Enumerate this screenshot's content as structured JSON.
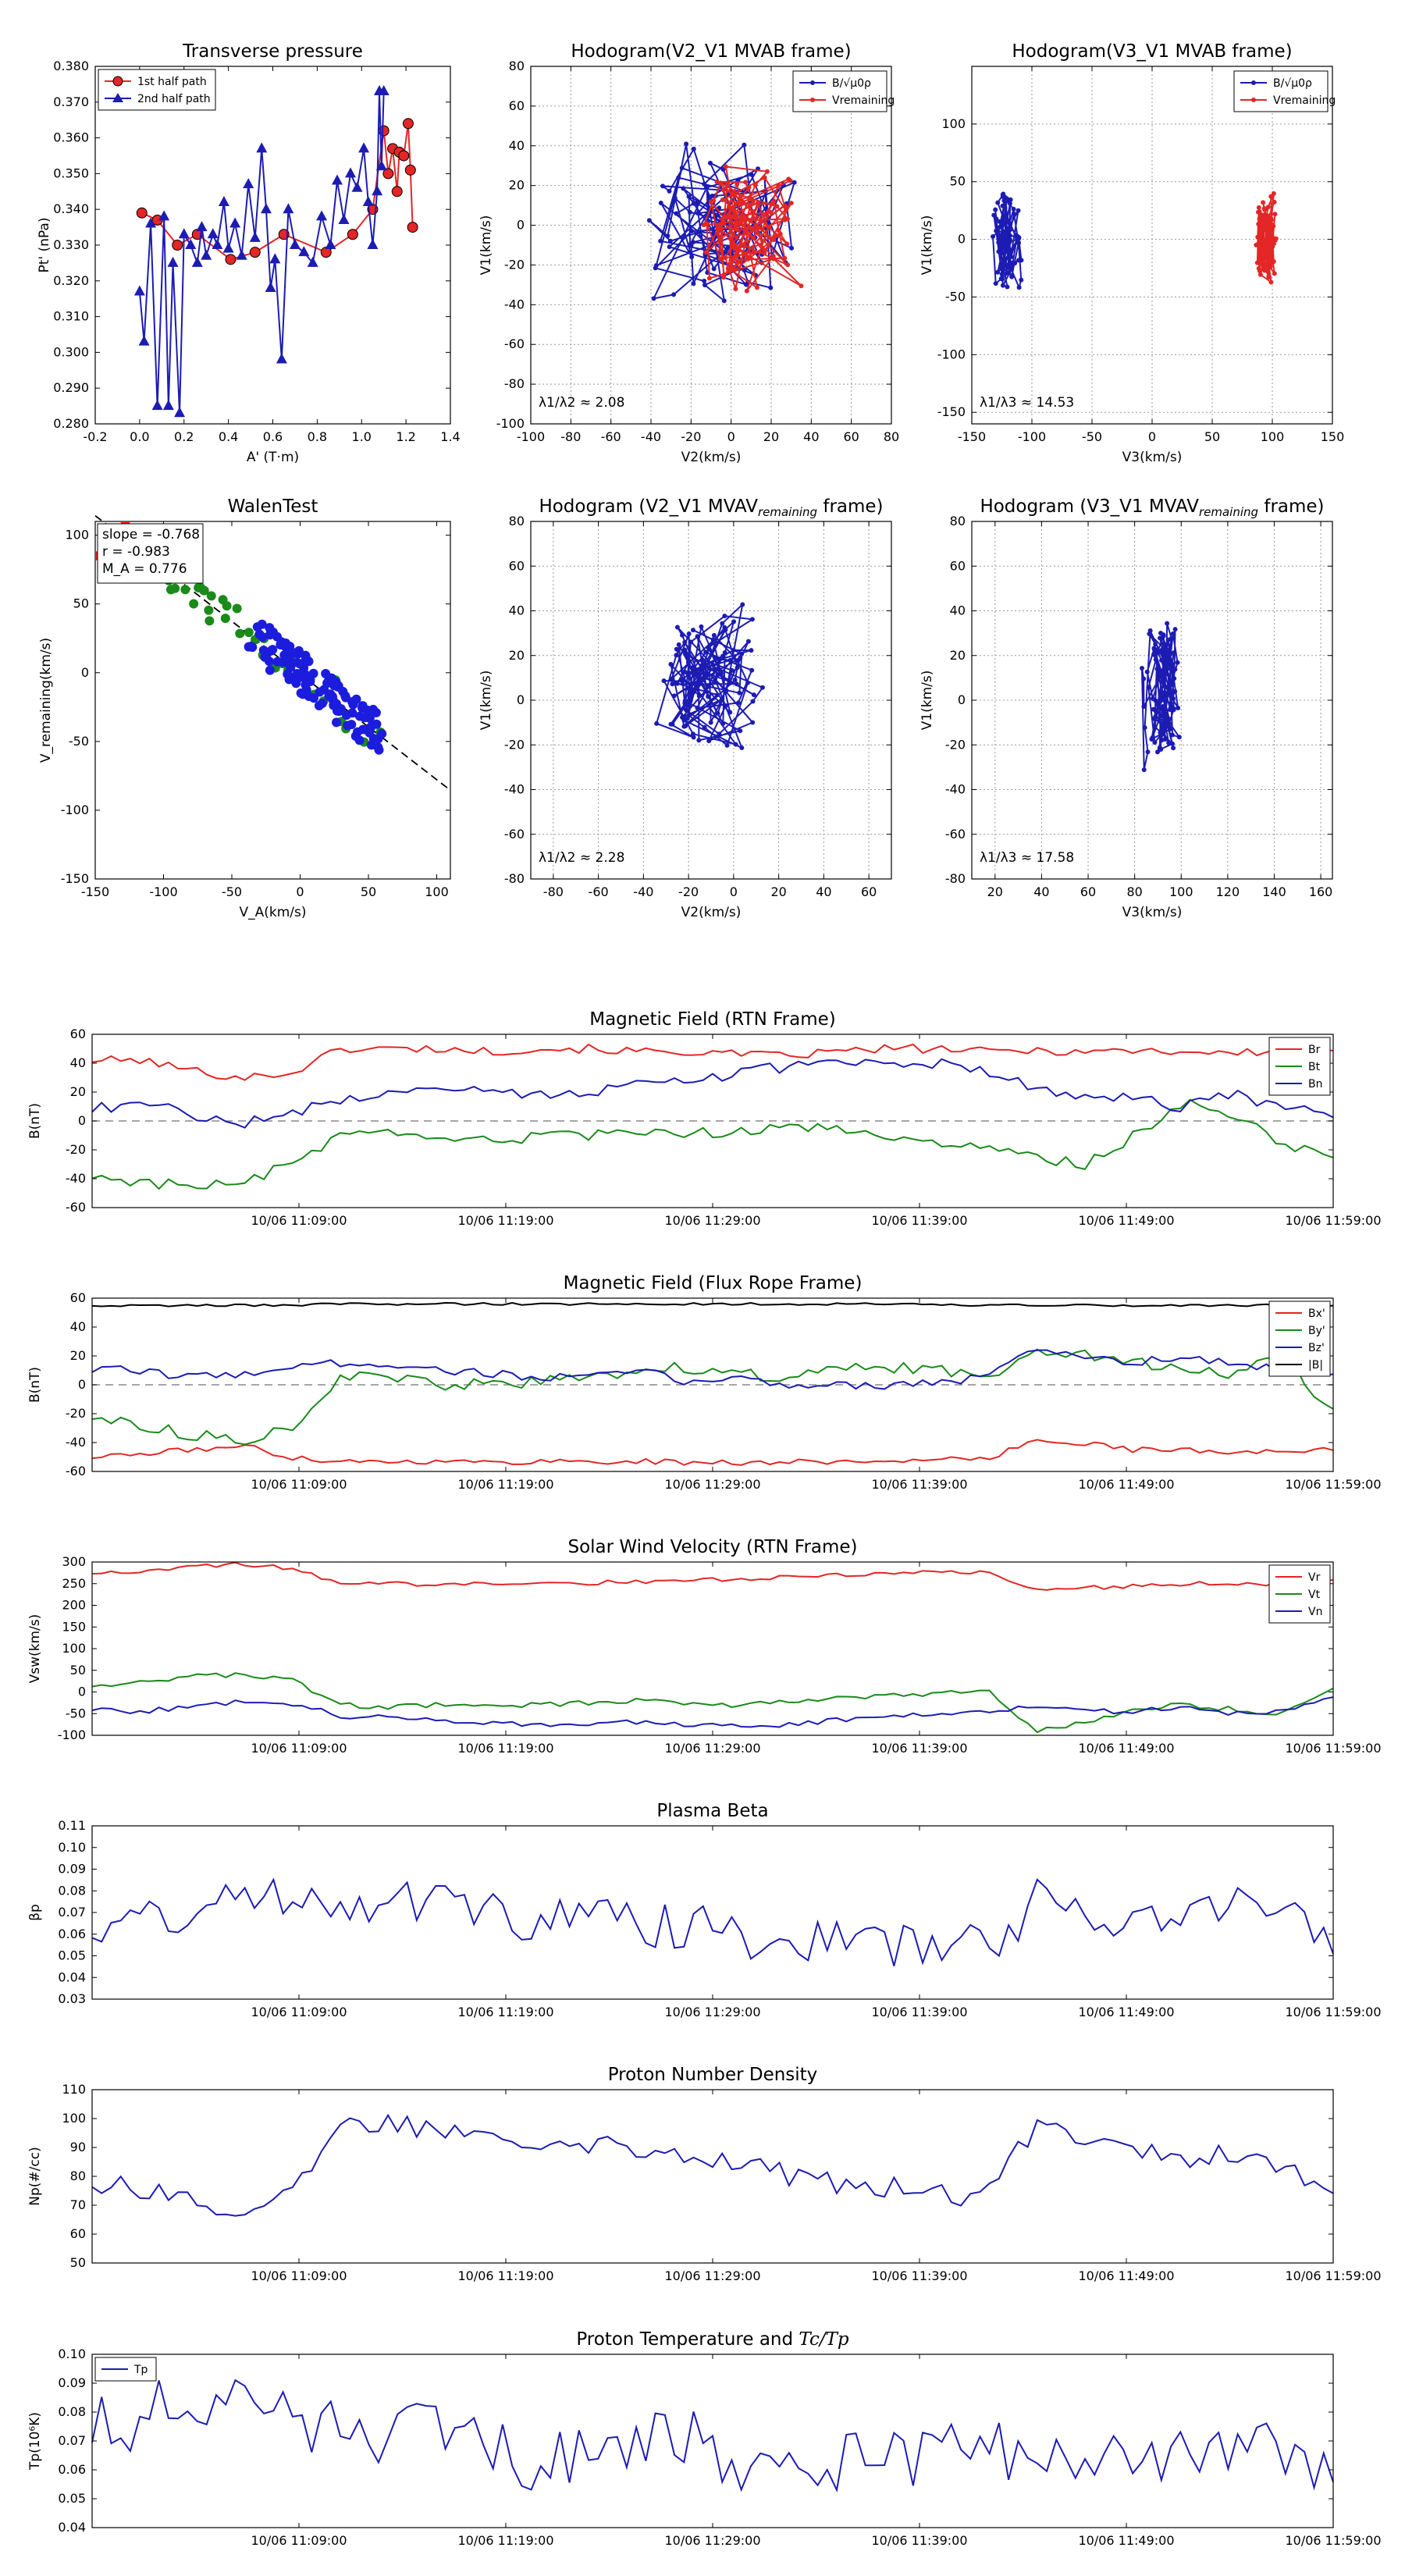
{
  "chart_data": [
    {
      "id": "pt",
      "type": "scatter",
      "title": "Transverse pressure",
      "xlabel": "A' (T·m)",
      "ylabel": "Pt' (nPa)",
      "xlim": [
        -0.2,
        1.4
      ],
      "ylim": [
        0.28,
        0.38
      ],
      "xticks": [
        -0.2,
        0.0,
        0.2,
        0.4,
        0.6,
        0.8,
        1.0,
        1.2,
        1.4
      ],
      "yticks": [
        0.28,
        0.29,
        0.3,
        0.31,
        0.32,
        0.33,
        0.34,
        0.35,
        0.36,
        0.37,
        0.38
      ],
      "legend_position": "top-left",
      "series": [
        {
          "name": "1st half path",
          "color": "#e32626",
          "marker": "circle",
          "x": [
            0.01,
            0.08,
            0.17,
            0.26,
            0.41,
            0.52,
            0.65,
            0.84,
            0.96,
            1.05,
            1.1,
            1.12,
            1.14,
            1.16,
            1.17,
            1.19,
            1.21,
            1.22,
            1.23
          ],
          "y": [
            0.339,
            0.337,
            0.33,
            0.333,
            0.326,
            0.328,
            0.333,
            0.328,
            0.333,
            0.34,
            0.362,
            0.35,
            0.357,
            0.345,
            0.356,
            0.355,
            0.364,
            0.351,
            0.335
          ]
        },
        {
          "name": "2nd half path",
          "color": "#1c1cb3",
          "marker": "triangle",
          "x": [
            0.0,
            0.02,
            0.05,
            0.08,
            0.11,
            0.13,
            0.15,
            0.18,
            0.2,
            0.23,
            0.26,
            0.28,
            0.3,
            0.33,
            0.35,
            0.38,
            0.4,
            0.43,
            0.46,
            0.49,
            0.52,
            0.55,
            0.57,
            0.59,
            0.61,
            0.64,
            0.67,
            0.7,
            0.74,
            0.78,
            0.82,
            0.86,
            0.89,
            0.92,
            0.95,
            0.98,
            1.01,
            1.03,
            1.05,
            1.07,
            1.08,
            1.09,
            1.1
          ],
          "y": [
            0.317,
            0.303,
            0.336,
            0.285,
            0.338,
            0.285,
            0.325,
            0.283,
            0.333,
            0.33,
            0.325,
            0.335,
            0.327,
            0.333,
            0.33,
            0.342,
            0.329,
            0.336,
            0.327,
            0.347,
            0.332,
            0.357,
            0.34,
            0.318,
            0.326,
            0.298,
            0.34,
            0.33,
            0.328,
            0.325,
            0.338,
            0.33,
            0.348,
            0.337,
            0.35,
            0.346,
            0.357,
            0.342,
            0.33,
            0.345,
            0.373,
            0.352,
            0.373
          ]
        }
      ]
    },
    {
      "id": "hodo1",
      "type": "line",
      "title": "Hodogram(V2_V1 MVAB frame)",
      "xlabel": "V2(km/s)",
      "ylabel": "V1(km/s)",
      "xlim": [
        -100,
        80
      ],
      "ylim": [
        -100,
        80
      ],
      "xticks": [
        -100,
        -80,
        -60,
        -40,
        -20,
        0,
        20,
        40,
        60,
        80
      ],
      "yticks": [
        -100,
        -80,
        -60,
        -40,
        -20,
        0,
        20,
        40,
        60,
        80
      ],
      "annotation": "λ1/λ2 ≈ 2.08",
      "legend_position": "top-right",
      "series": [
        {
          "name": "B/√μ0ρ",
          "color": "#1c1cb3",
          "seed": 11,
          "n": 95,
          "cx": -5,
          "cy": 5,
          "sx": 32,
          "sy": 38
        },
        {
          "name": "Vremaining",
          "color": "#e32626",
          "seed": 23,
          "n": 95,
          "cx": 12,
          "cy": -5,
          "sx": 22,
          "sy": 28
        }
      ]
    },
    {
      "id": "hodo2",
      "type": "line",
      "title": "Hodogram(V3_V1 MVAB frame)",
      "xlabel": "V3(km/s)",
      "ylabel": "V1(km/s)",
      "xlim": [
        -150,
        150
      ],
      "ylim": [
        -160,
        150
      ],
      "xticks": [
        -150,
        -100,
        -50,
        0,
        50,
        100,
        150
      ],
      "yticks": [
        -150,
        -100,
        -50,
        0,
        50,
        100
      ],
      "annotation": "λ1/λ3 ≈ 14.53",
      "legend_position": "top-right",
      "series": [
        {
          "name": "B/√μ0ρ",
          "color": "#1c1cb3",
          "seed": 31,
          "n": 80,
          "cx": -120,
          "cy": -5,
          "sx": 10,
          "sy": 40
        },
        {
          "name": "Vremaining",
          "color": "#e32626",
          "seed": 47,
          "n": 80,
          "cx": 95,
          "cy": 0,
          "sx": 8,
          "sy": 35
        }
      ]
    },
    {
      "id": "walen",
      "type": "scatter",
      "title": "WalenTest",
      "xlabel": "V_A(km/s)",
      "ylabel": "V_remaining(km/s)",
      "xlim": [
        -150,
        110
      ],
      "ylim": [
        -150,
        110
      ],
      "xticks": [
        -150,
        -100,
        -50,
        0,
        50,
        100
      ],
      "yticks": [
        -150,
        -100,
        -50,
        0,
        50,
        100
      ],
      "stats": [
        "slope = -0.768",
        "r = -0.983",
        "M_A = 0.776"
      ],
      "fit_slope": -0.768,
      "series": [
        {
          "name": "red",
          "color": "#e32626",
          "x": [
            -150,
            -140,
            -128,
            -115
          ],
          "y": [
            85,
            95,
            110,
            105
          ]
        },
        {
          "name": "green",
          "color": "#1a8a1a",
          "seed": 53,
          "n": 45,
          "x0": -110,
          "x1": 60
        },
        {
          "name": "blue",
          "color": "#1c1cdd",
          "seed": 61,
          "n": 120,
          "x0": -40,
          "x1": 60
        }
      ]
    },
    {
      "id": "hodo3",
      "type": "line",
      "title": "Hodogram (V2_V1 MVAV",
      "title_sub": "remaining",
      "title_end": " frame)",
      "xlabel": "V2(km/s)",
      "ylabel": "V1(km/s)",
      "xlim": [
        -90,
        70
      ],
      "ylim": [
        -80,
        80
      ],
      "xticks": [
        -80,
        -60,
        -40,
        -20,
        0,
        20,
        40,
        60
      ],
      "yticks": [
        -80,
        -60,
        -40,
        -20,
        0,
        20,
        40,
        60,
        80
      ],
      "annotation": "λ1/λ2 ≈ 2.28",
      "series": [
        {
          "name": "V",
          "color": "#1c1cb3",
          "seed": 71,
          "n": 110,
          "cx": -12,
          "cy": 10,
          "sx": 22,
          "sy": 28
        }
      ]
    },
    {
      "id": "hodo4",
      "type": "line",
      "title": "Hodogram (V3_V1 MVAV",
      "title_sub": "remaining",
      "title_end": " frame)",
      "xlabel": "V3(km/s)",
      "ylabel": "V1(km/s)",
      "xlim": [
        10,
        165
      ],
      "ylim": [
        -80,
        80
      ],
      "xticks": [
        20,
        40,
        60,
        80,
        100,
        120,
        140,
        160
      ],
      "yticks": [
        -80,
        -60,
        -40,
        -20,
        0,
        20,
        40,
        60,
        80
      ],
      "annotation": "λ1/λ3 ≈ 17.58",
      "series": [
        {
          "name": "V",
          "color": "#1c1cb3",
          "seed": 83,
          "n": 100,
          "cx": 92,
          "cy": 5,
          "sx": 7,
          "sy": 30
        }
      ]
    },
    {
      "id": "bfield",
      "type": "line",
      "title": "Magnetic Field (RTN Frame)",
      "ylabel": "B(nT)",
      "ylim": [
        -60,
        60
      ],
      "yticks": [
        -60,
        -40,
        -20,
        0,
        20,
        40,
        60
      ],
      "zero_line": true,
      "legend_position": "top-right",
      "series": [
        {
          "name": "Br",
          "color": "#e32626",
          "seed": 101,
          "base": [
            42,
            42,
            35,
            30,
            33,
            50,
            50,
            50,
            48,
            50,
            50,
            48,
            48,
            46,
            45,
            48,
            50,
            50,
            48,
            49,
            48,
            49,
            48,
            47,
            48,
            46
          ],
          "amp": 3
        },
        {
          "name": "Bt",
          "color": "#1a8a1a",
          "seed": 103,
          "base": [
            -38,
            -42,
            -45,
            -44,
            -30,
            -10,
            -10,
            -15,
            -12,
            -12,
            -10,
            -10,
            -8,
            -8,
            -5,
            -5,
            -10,
            -15,
            -20,
            -25,
            -30,
            -10,
            12,
            5,
            -15,
            -25
          ],
          "amp": 4
        },
        {
          "name": "Bn",
          "color": "#1c1cb3",
          "seed": 107,
          "base": [
            8,
            12,
            5,
            -2,
            5,
            15,
            20,
            25,
            22,
            18,
            20,
            25,
            30,
            32,
            38,
            40,
            38,
            40,
            35,
            22,
            18,
            15,
            10,
            18,
            10,
            3
          ],
          "amp": 4
        }
      ]
    },
    {
      "id": "bflux",
      "type": "line",
      "title": "Magnetic Field (Flux Rope Frame)",
      "ylabel": "B(nT)",
      "ylim": [
        -60,
        60
      ],
      "yticks": [
        -60,
        -40,
        -20,
        0,
        20,
        40,
        60
      ],
      "zero_line": true,
      "legend_position": "top-right",
      "series": [
        {
          "name": "Bx'",
          "color": "#e32626",
          "seed": 111,
          "base": [
            -50,
            -48,
            -45,
            -42,
            -50,
            -53,
            -53,
            -53,
            -54,
            -53,
            -53,
            -53,
            -54,
            -54,
            -53,
            -54,
            -52,
            -52,
            -52,
            -38,
            -40,
            -45,
            -45,
            -48,
            -45,
            -45
          ],
          "amp": 2
        },
        {
          "name": "By'",
          "color": "#1a8a1a",
          "seed": 113,
          "base": [
            -22,
            -28,
            -35,
            -38,
            -30,
            5,
            5,
            0,
            0,
            2,
            5,
            10,
            12,
            8,
            5,
            10,
            12,
            10,
            5,
            25,
            22,
            15,
            10,
            8,
            20,
            -20
          ],
          "amp": 4
        },
        {
          "name": "Bz'",
          "color": "#1c1cb3",
          "seed": 117,
          "base": [
            10,
            10,
            5,
            8,
            12,
            15,
            15,
            10,
            8,
            5,
            5,
            10,
            2,
            5,
            0,
            0,
            0,
            2,
            5,
            25,
            20,
            15,
            20,
            15,
            10,
            5
          ],
          "amp": 3
        },
        {
          "name": "|B|",
          "color": "#000000",
          "seed": 119,
          "base": [
            55,
            55,
            55,
            55,
            55,
            56,
            56,
            56,
            56,
            56,
            56,
            56,
            56,
            56,
            56,
            56,
            56,
            56,
            55,
            55,
            55,
            55,
            55,
            55,
            55,
            55
          ],
          "amp": 0.8
        }
      ]
    },
    {
      "id": "vsw",
      "type": "line",
      "title": "Solar Wind Velocity (RTN Frame)",
      "ylabel": "Vsw(km/s)",
      "ylim": [
        -100,
        300
      ],
      "yticks": [
        -100,
        -50,
        0,
        50,
        100,
        150,
        200,
        250,
        300
      ],
      "legend_position": "top-right",
      "series": [
        {
          "name": "Vr",
          "color": "#e32626",
          "seed": 121,
          "base": [
            275,
            280,
            290,
            295,
            285,
            250,
            250,
            248,
            250,
            255,
            252,
            255,
            260,
            258,
            265,
            270,
            275,
            278,
            275,
            240,
            240,
            245,
            250,
            250,
            250,
            255
          ],
          "amp": 5
        },
        {
          "name": "Vt",
          "color": "#1a8a1a",
          "seed": 123,
          "base": [
            15,
            25,
            35,
            40,
            30,
            -30,
            -35,
            -30,
            -30,
            -30,
            -25,
            -20,
            -25,
            -30,
            -20,
            -15,
            -10,
            -5,
            5,
            -90,
            -70,
            -40,
            -30,
            -40,
            -50,
            10
          ],
          "amp": 6
        },
        {
          "name": "Vn",
          "color": "#1c1cb3",
          "seed": 127,
          "base": [
            -40,
            -45,
            -35,
            -20,
            -25,
            -55,
            -60,
            -65,
            -70,
            -75,
            -75,
            -70,
            -75,
            -80,
            -75,
            -65,
            -55,
            -50,
            -45,
            -30,
            -45,
            -45,
            -35,
            -50,
            -45,
            -10
          ],
          "amp": 6
        }
      ]
    },
    {
      "id": "beta",
      "type": "line",
      "title": "Plasma Beta",
      "ylabel": "βp",
      "ylim": [
        0.03,
        0.11
      ],
      "yticks": [
        0.03,
        0.04,
        0.05,
        0.06,
        0.07,
        0.08,
        0.09,
        0.1,
        0.11
      ],
      "series": [
        {
          "name": "beta",
          "color": "#1c1cb3",
          "seed": 131,
          "base": [
            0.063,
            0.068,
            0.07,
            0.075,
            0.08,
            0.075,
            0.078,
            0.075,
            0.07,
            0.066,
            0.068,
            0.066,
            0.063,
            0.06,
            0.058,
            0.056,
            0.054,
            0.056,
            0.054,
            0.075,
            0.072,
            0.066,
            0.068,
            0.078,
            0.07,
            0.055
          ],
          "amp": 0.011
        }
      ]
    },
    {
      "id": "np",
      "type": "line",
      "title": "Proton Number Density",
      "ylabel": "Np(#/cc)",
      "ylim": [
        50,
        110
      ],
      "yticks": [
        50,
        60,
        70,
        80,
        90,
        100,
        110
      ],
      "series": [
        {
          "name": "Np",
          "color": "#1c1cb3",
          "seed": 141,
          "base": [
            78,
            76,
            72,
            68,
            72,
            98,
            98,
            97,
            95,
            93,
            92,
            90,
            88,
            85,
            80,
            78,
            76,
            74,
            72,
            98,
            95,
            90,
            86,
            88,
            85,
            72
          ],
          "amp": 4
        }
      ]
    },
    {
      "id": "tp",
      "type": "line",
      "title": "Proton Temperature and ",
      "title_math": "Tc/Tp",
      "ylabel": "Tp(10⁶K)",
      "ylim": [
        0.04,
        0.1
      ],
      "yticks": [
        0.04,
        0.05,
        0.06,
        0.07,
        0.08,
        0.09,
        0.1
      ],
      "legend_position": "top-left",
      "series": [
        {
          "name": "Tp",
          "color": "#1c1cb3",
          "seed": 151,
          "base": [
            0.074,
            0.078,
            0.085,
            0.082,
            0.078,
            0.072,
            0.072,
            0.072,
            0.07,
            0.062,
            0.063,
            0.07,
            0.072,
            0.064,
            0.06,
            0.062,
            0.064,
            0.066,
            0.066,
            0.064,
            0.06,
            0.062,
            0.064,
            0.07,
            0.068,
            0.062
          ],
          "amp": 0.011
        }
      ]
    }
  ],
  "time_axis": {
    "start_min": 0,
    "end_min": 60,
    "tick_labels": [
      "10/06 11:09:00",
      "10/06 11:19:00",
      "10/06 11:29:00",
      "10/06 11:39:00",
      "10/06 11:49:00",
      "10/06 11:59:00"
    ],
    "tick_minutes": [
      10,
      20,
      30,
      40,
      50,
      60
    ]
  }
}
